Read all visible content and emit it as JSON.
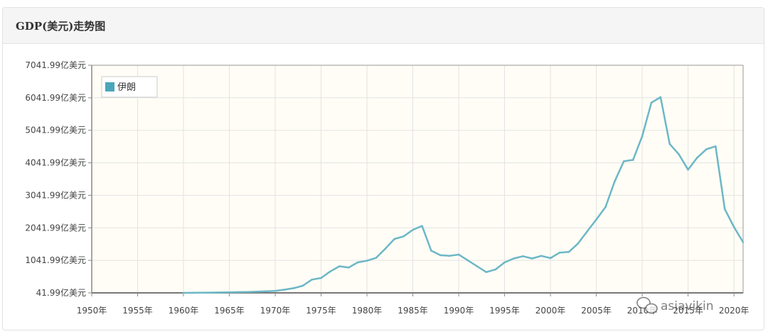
{
  "panel": {
    "title": "GDP(美元)走势图"
  },
  "watermark": {
    "text": "asiavikin"
  },
  "colors": {
    "line": "#6cb7c7",
    "legend_swatch": "#4aa6b9",
    "plot_bg": "#fffdf6",
    "grid": "#e3e3e3",
    "border": "#999999"
  },
  "chart_data": {
    "type": "line",
    "title": "",
    "xlabel": "",
    "ylabel": "",
    "legend": {
      "placement": "top-left",
      "entries": [
        "伊朗"
      ]
    },
    "grid": true,
    "xlim": [
      1950,
      2021
    ],
    "ylim": [
      41.99,
      7041.99
    ],
    "x_tick_labels": [
      "1950年",
      "1955年",
      "1960年",
      "1965年",
      "1970年",
      "1975年",
      "1980年",
      "1985年",
      "1990年",
      "1995年",
      "2000年",
      "2005年",
      "2010年",
      "2015年",
      "2020年"
    ],
    "x_ticks": [
      1950,
      1955,
      1960,
      1965,
      1970,
      1975,
      1980,
      1985,
      1990,
      1995,
      2000,
      2005,
      2010,
      2015,
      2020
    ],
    "y_tick_labels": [
      "41.99亿美元",
      "1041.99亿美元",
      "2041.99亿美元",
      "3041.99亿美元",
      "4041.99亿美元",
      "5041.99亿美元",
      "6041.99亿美元",
      "7041.99亿美元"
    ],
    "y_ticks": [
      41.99,
      1041.99,
      2041.99,
      3041.99,
      4041.99,
      5041.99,
      6041.99,
      7041.99
    ],
    "series": [
      {
        "name": "伊朗",
        "x": [
          1960,
          1961,
          1962,
          1963,
          1964,
          1965,
          1966,
          1967,
          1968,
          1969,
          1970,
          1971,
          1972,
          1973,
          1974,
          1975,
          1976,
          1977,
          1978,
          1979,
          1980,
          1981,
          1982,
          1983,
          1984,
          1985,
          1986,
          1987,
          1988,
          1989,
          1990,
          1991,
          1992,
          1993,
          1994,
          1995,
          1996,
          1997,
          1998,
          1999,
          2000,
          2001,
          2002,
          2003,
          2004,
          2005,
          2006,
          2007,
          2008,
          2009,
          2010,
          2011,
          2012,
          2013,
          2014,
          2015,
          2016,
          2017,
          2018,
          2019,
          2020,
          2021
        ],
        "values": [
          42,
          45,
          48,
          50,
          55,
          60,
          65,
          70,
          80,
          90,
          100,
          140,
          185,
          260,
          450,
          500,
          700,
          860,
          820,
          980,
          1030,
          1120,
          1400,
          1700,
          1780,
          1980,
          2100,
          1340,
          1200,
          1180,
          1220,
          1040,
          860,
          680,
          760,
          980,
          1100,
          1170,
          1100,
          1180,
          1110,
          1280,
          1300,
          1560,
          1930,
          2300,
          2680,
          3470,
          4090,
          4130,
          4860,
          5890,
          6060,
          4620,
          4300,
          3830,
          4200,
          4460,
          4550,
          2620,
          2070,
          1600
        ]
      }
    ]
  }
}
